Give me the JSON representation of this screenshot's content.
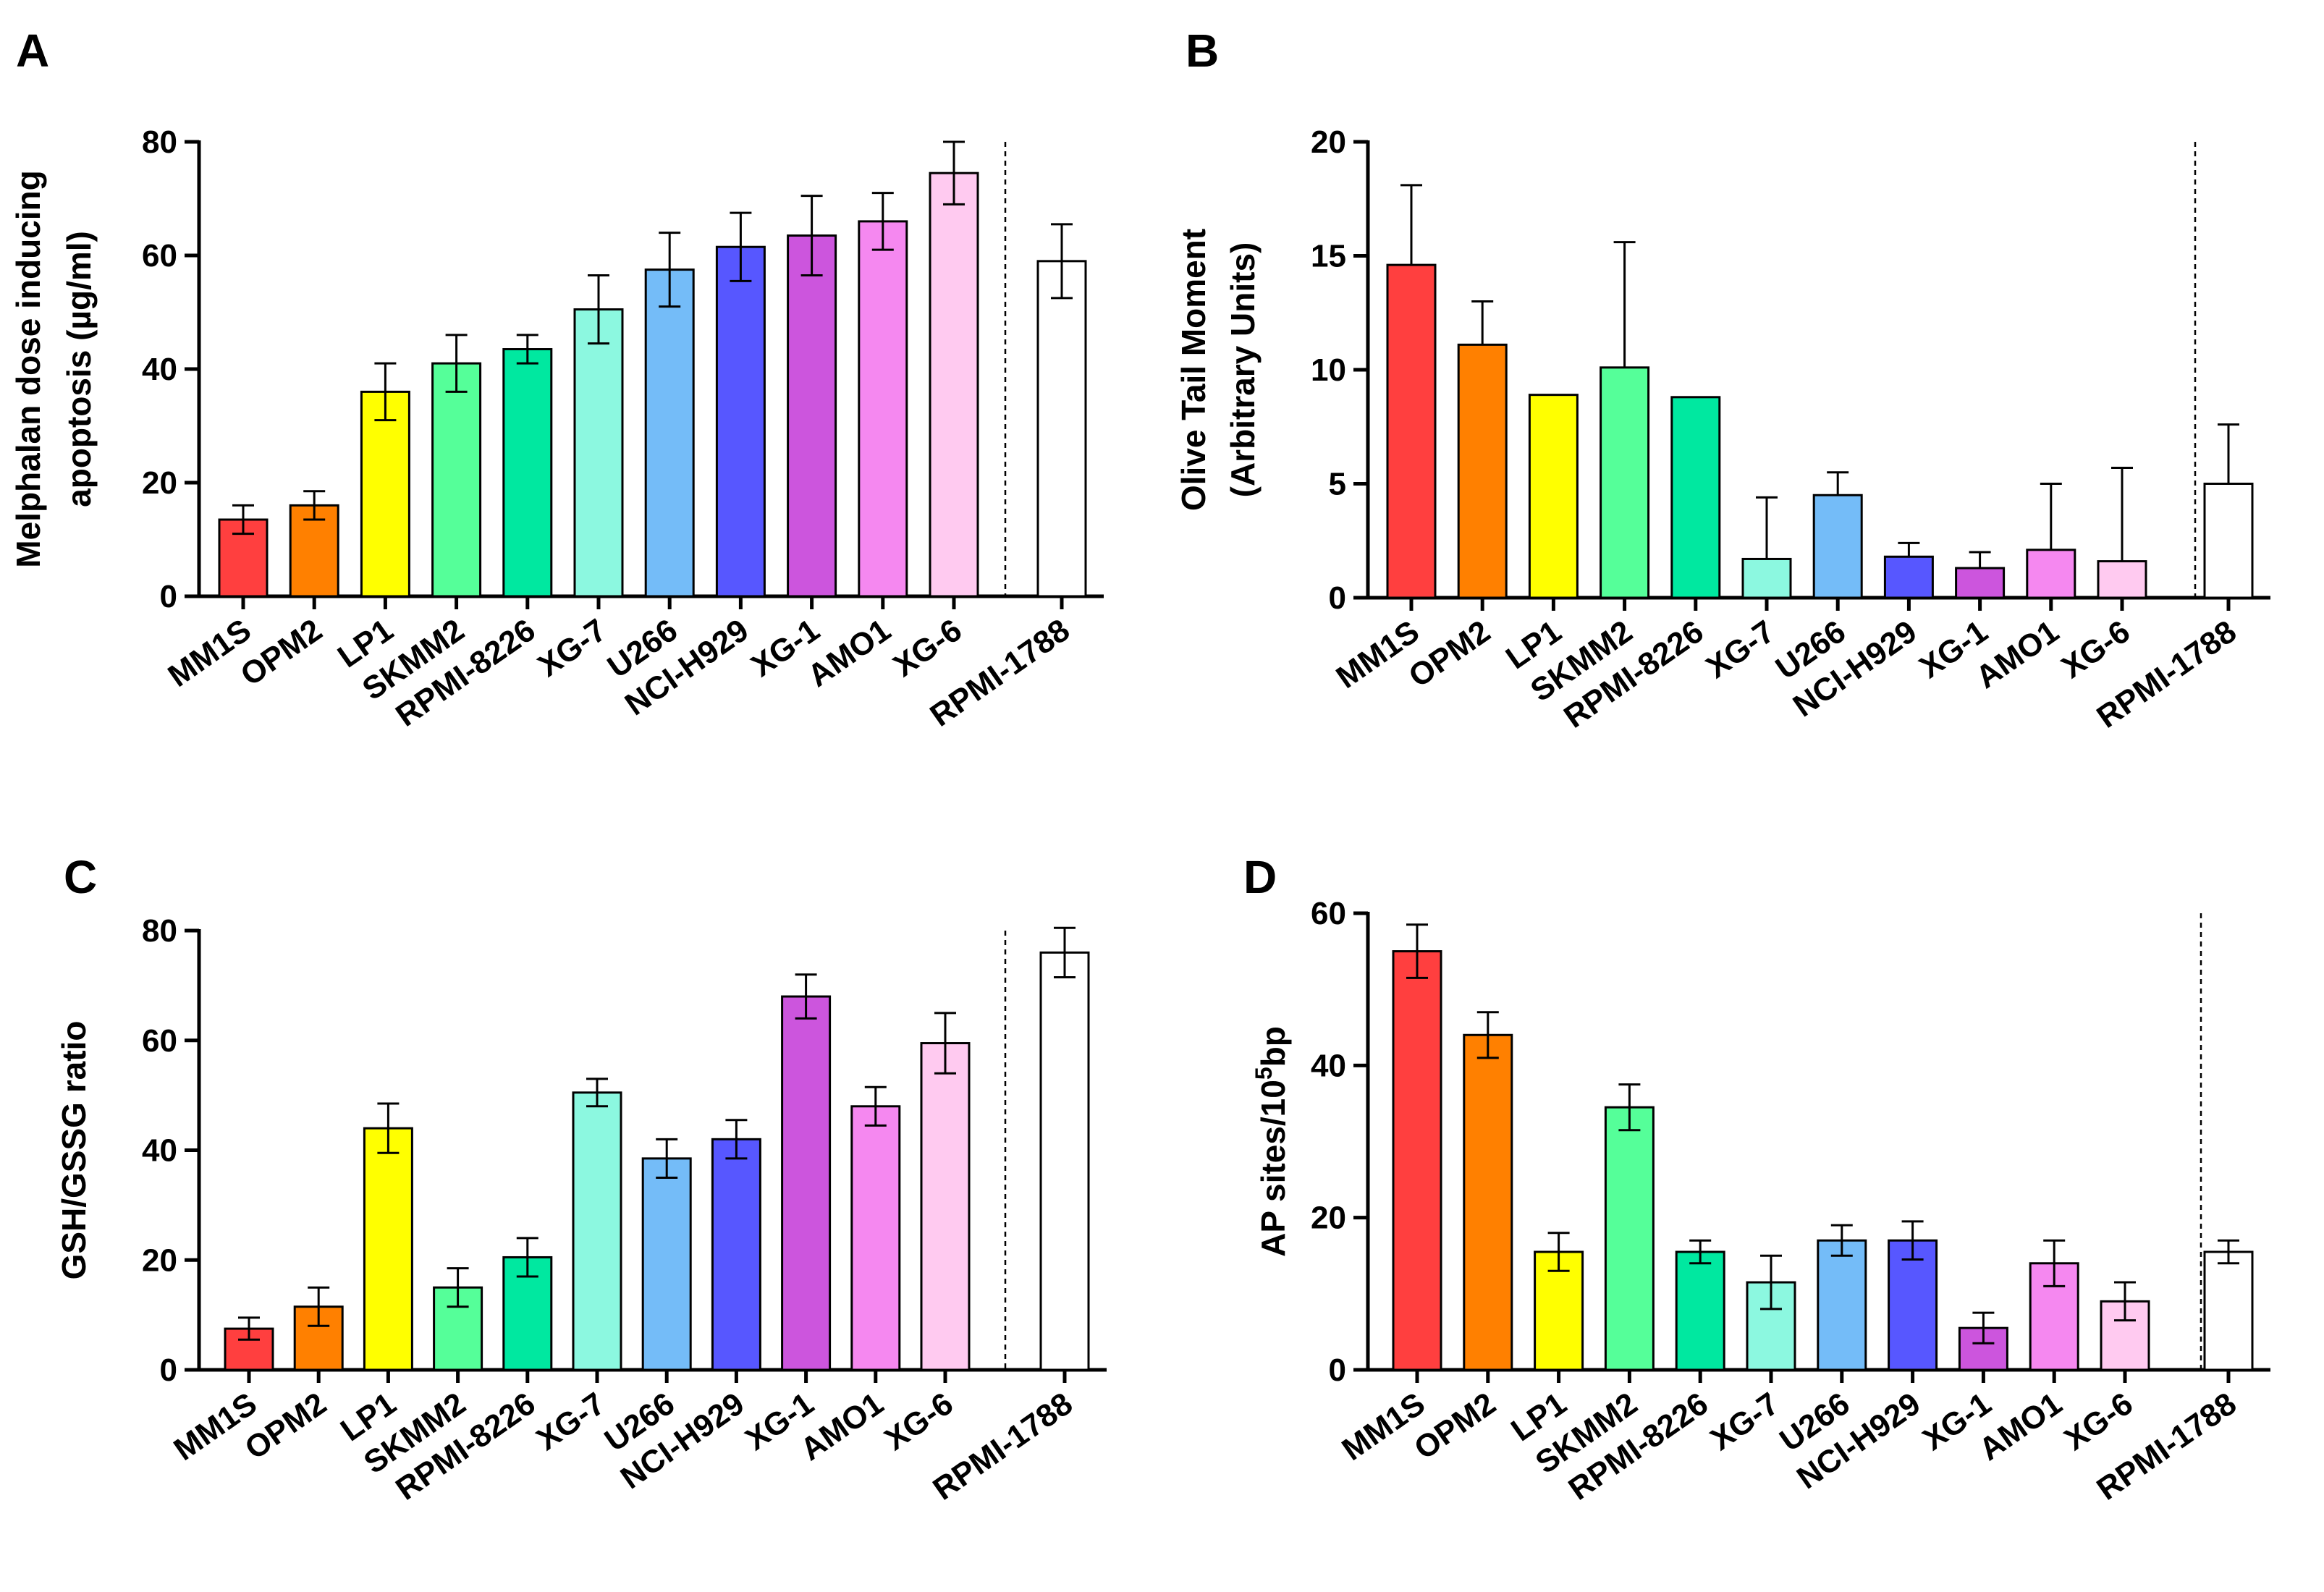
{
  "categories": [
    "MM1S",
    "OPM2",
    "LP1",
    "SKMM2",
    "RPMI-8226",
    "XG-7",
    "U266",
    "NCI-H929",
    "XG-1",
    "AMO1",
    "XG-6",
    "RPMI-1788"
  ],
  "colors": [
    "#ff3f3f",
    "#ff8000",
    "#ffff00",
    "#55ff99",
    "#00e8a0",
    "#8cf8e0",
    "#74bcf8",
    "#5757ff",
    "#cc55dd",
    "#f588f0",
    "#ffcaf0",
    "#ffffff"
  ],
  "chart_data": [
    {
      "type": "bar",
      "panel": "A",
      "ylabel_lines": [
        "Melphalan dose inducing",
        "apoptosis (µg/ml)"
      ],
      "ylim": [
        0,
        80
      ],
      "yticks": [
        "0",
        "20",
        "40",
        "60",
        "80"
      ],
      "values": [
        13.5,
        16,
        36,
        41,
        43.5,
        50.5,
        57.5,
        61.5,
        63.5,
        66,
        74.5,
        59
      ],
      "errors": [
        2.5,
        2.5,
        5,
        5,
        2.5,
        6,
        6.5,
        6,
        7,
        5,
        5.5,
        6.5
      ],
      "error_style": "both"
    },
    {
      "type": "bar",
      "panel": "B",
      "ylabel_lines": [
        "Olive Tail Moment",
        "(Arbitrary Units)"
      ],
      "ylim": [
        0,
        20
      ],
      "yticks": [
        "0",
        "5",
        "10",
        "15",
        "20"
      ],
      "values": [
        14.6,
        11.1,
        8.9,
        10.1,
        8.8,
        1.7,
        4.5,
        1.8,
        1.3,
        2.1,
        1.6,
        5.0
      ],
      "errors": [
        3.5,
        1.9,
        0,
        5.5,
        0,
        2.7,
        1.0,
        0.6,
        0.7,
        2.9,
        4.1,
        2.6
      ],
      "error_style": "upper"
    },
    {
      "type": "bar",
      "panel": "C",
      "ylabel_lines": [
        "GSH/GSSG ratio"
      ],
      "ylim": [
        0,
        80
      ],
      "yticks": [
        "0",
        "20",
        "40",
        "60",
        "80"
      ],
      "values": [
        7.5,
        11.5,
        44,
        15,
        20.5,
        50.5,
        38.5,
        42,
        68,
        48,
        59.5,
        76
      ],
      "errors": [
        2,
        3.5,
        4.5,
        3.5,
        3.5,
        2.5,
        3.5,
        3.5,
        4,
        3.5,
        5.5,
        4.5
      ],
      "error_style": "both"
    },
    {
      "type": "bar",
      "panel": "D",
      "ylabel_lines": [
        "AP sites/10",
        "5",
        "bp"
      ],
      "ylim": [
        0,
        60
      ],
      "yticks": [
        "0",
        "20",
        "40",
        "60"
      ],
      "values": [
        55,
        44,
        15.5,
        34.5,
        15.5,
        11.5,
        17,
        17,
        5.5,
        14,
        9,
        15.5
      ],
      "errors": [
        3.5,
        3,
        2.5,
        3,
        1.5,
        3.5,
        2,
        2.5,
        2,
        3,
        2.5,
        1.5
      ],
      "error_style": "both"
    }
  ]
}
